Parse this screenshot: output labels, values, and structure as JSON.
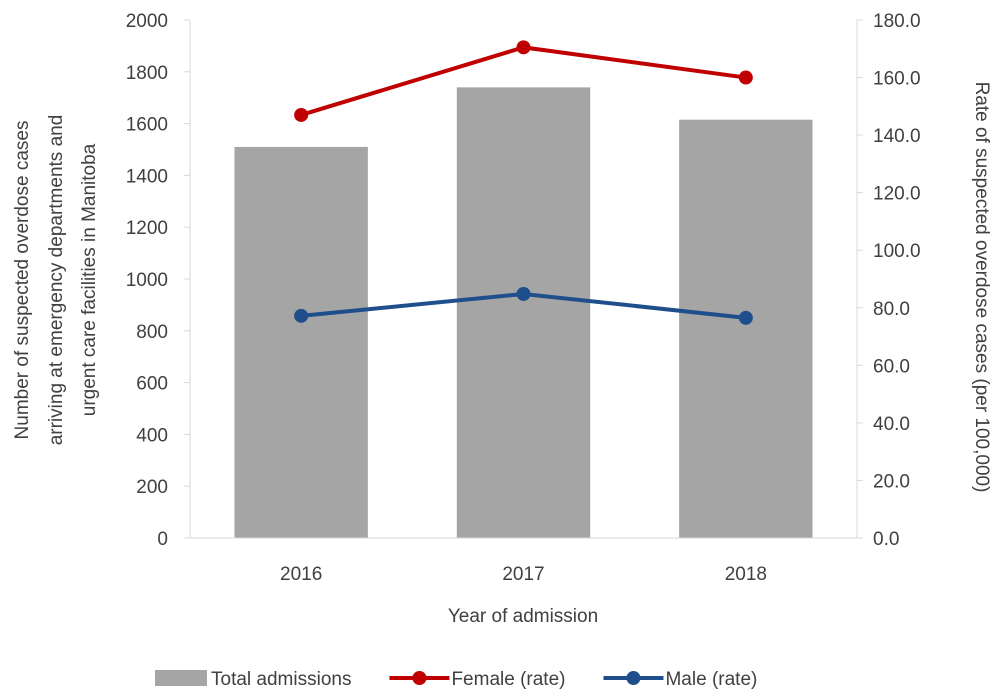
{
  "chart_data": {
    "type": "bar",
    "title": "",
    "categories": [
      "2016",
      "2017",
      "2018"
    ],
    "xlabel": "Year of admission",
    "ylabel_left_lines": [
      "Number of suspected overdose cases",
      "arriving at emergency departments and",
      "urgent care facilities in Manitoba"
    ],
    "ylabel_right": "Rate of suspected overdose cases (per 100,000)",
    "y_left": {
      "min": 0,
      "max": 2000,
      "step": 200,
      "ticks": [
        "0",
        "200",
        "400",
        "600",
        "800",
        "1000",
        "1200",
        "1400",
        "1600",
        "1800",
        "2000"
      ]
    },
    "y_right": {
      "min": 0,
      "max": 180,
      "step": 20,
      "ticks": [
        "0.0",
        "20.0",
        "40.0",
        "60.0",
        "80.0",
        "100.0",
        "120.0",
        "140.0",
        "160.0",
        "180.0"
      ]
    },
    "series": [
      {
        "name": "Total admissions",
        "kind": "bar",
        "axis": "left",
        "color": "#a5a5a5",
        "values": [
          1510,
          1740,
          1615
        ]
      },
      {
        "name": "Female (rate)",
        "kind": "line",
        "axis": "right",
        "color": "#c00000",
        "values": [
          147.0,
          170.5,
          160.0
        ]
      },
      {
        "name": "Male (rate)",
        "kind": "line",
        "axis": "right",
        "color": "#1f4e8c",
        "values": [
          77.2,
          84.8,
          76.5
        ]
      }
    ],
    "grid": false,
    "legend_position": "bottom"
  }
}
